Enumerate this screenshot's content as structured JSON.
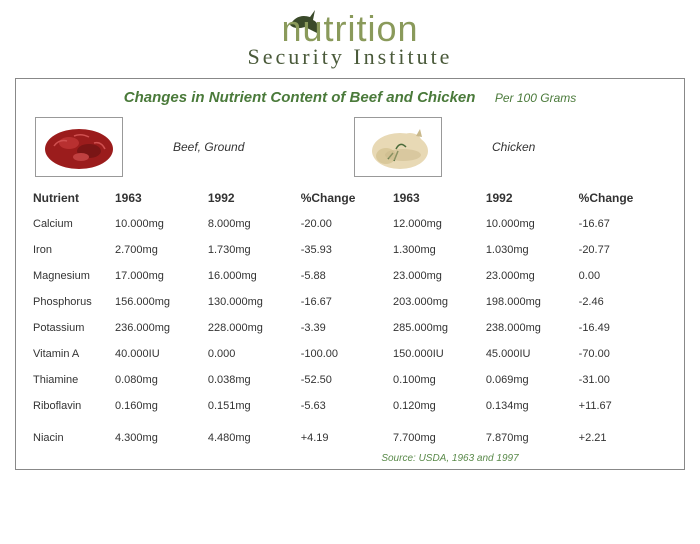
{
  "logo": {
    "word": "nutrition",
    "subtitle": "Security Institute",
    "color": "#8a9a5b",
    "subtitle_color": "#4a5a3a"
  },
  "title": {
    "main": "Changes in Nutrient Content of Beef and Chicken",
    "per": "Per 100 Grams",
    "color": "#4a7a3a"
  },
  "foods": {
    "left": "Beef, Ground",
    "right": "Chicken"
  },
  "headers": [
    "Nutrient",
    "1963",
    "1992",
    "%Change",
    "1963",
    "1992",
    "%Change"
  ],
  "rows": [
    {
      "n": "Calcium",
      "b63": "10.000mg",
      "b92": "8.000mg",
      "bc": "-20.00",
      "c63": "12.000mg",
      "c92": "10.000mg",
      "cc": "-16.67"
    },
    {
      "n": "Iron",
      "b63": "2.700mg",
      "b92": "1.730mg",
      "bc": "-35.93",
      "c63": "1.300mg",
      "c92": "1.030mg",
      "cc": "-20.77"
    },
    {
      "n": "Magnesium",
      "b63": "17.000mg",
      "b92": "16.000mg",
      "bc": "-5.88",
      "c63": "23.000mg",
      "c92": "23.000mg",
      "cc": "0.00"
    },
    {
      "n": "Phosphorus",
      "b63": "156.000mg",
      "b92": "130.000mg",
      "bc": "-16.67",
      "c63": "203.000mg",
      "c92": "198.000mg",
      "cc": "-2.46"
    },
    {
      "n": "Potassium",
      "b63": "236.000mg",
      "b92": "228.000mg",
      "bc": "-3.39",
      "c63": "285.000mg",
      "c92": "238.000mg",
      "cc": "-16.49"
    },
    {
      "n": "Vitamin A",
      "b63": "40.000IU",
      "b92": "0.000",
      "bc": "-100.00",
      "c63": "150.000IU",
      "c92": "45.000IU",
      "cc": "-70.00"
    },
    {
      "n": "Thiamine",
      "b63": "0.080mg",
      "b92": "0.038mg",
      "bc": "-52.50",
      "c63": "0.100mg",
      "c92": "0.069mg",
      "cc": "-31.00"
    },
    {
      "n": "Riboflavin",
      "b63": "0.160mg",
      "b92": "0.151mg",
      "bc": "-5.63",
      "c63": "0.120mg",
      "c92": "0.134mg",
      "cc": "+11.67"
    },
    {
      "n": "Niacin",
      "b63": "4.300mg",
      "b92": "4.480mg",
      "bc": "+4.19",
      "c63": "7.700mg",
      "c92": "7.870mg",
      "cc": "+2.21"
    }
  ],
  "source": "Source: USDA, 1963 and 1997",
  "colors": {
    "beef": "#9b1c1c",
    "chicken_body": "#e8d9b5",
    "chicken_shadow": "#c9b88a",
    "herb": "#4a6b3a",
    "source": "#5a8a4a"
  },
  "last_row_extra_gap": 6
}
